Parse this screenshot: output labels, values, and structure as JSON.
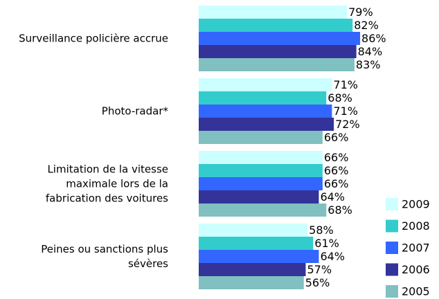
{
  "chart_data": {
    "type": "bar",
    "orientation": "horizontal",
    "categories": [
      "Surveillance policière accrue",
      "Photo-radar*",
      "Limitation de la vitesse maximale lors de la fabrication des voitures",
      "Peines ou sanctions plus sévères"
    ],
    "series": [
      {
        "name": "2009",
        "color": "#ccffff",
        "values": [
          79,
          71,
          66,
          58
        ],
        "value_labels": [
          "79%",
          "71%",
          "66%",
          "58%"
        ]
      },
      {
        "name": "2008",
        "color": "#33cccc",
        "values": [
          82,
          68,
          66,
          61
        ],
        "value_labels": [
          "82%",
          "68%",
          "66%",
          "61%"
        ]
      },
      {
        "name": "2007",
        "color": "#3366ff",
        "values": [
          86,
          71,
          66,
          64
        ],
        "value_labels": [
          "86%",
          "71%",
          "66%",
          "64%"
        ]
      },
      {
        "name": "2006",
        "color": "#333399",
        "values": [
          84,
          72,
          64,
          57
        ],
        "value_labels": [
          "84%",
          "72%",
          "64%",
          "57%"
        ]
      },
      {
        "name": "2005",
        "color": "#80c0c0",
        "values": [
          83,
          66,
          68,
          56
        ],
        "value_labels": [
          "83%",
          "66%",
          "68%",
          "56%"
        ]
      }
    ],
    "legend": "bottom-right"
  }
}
